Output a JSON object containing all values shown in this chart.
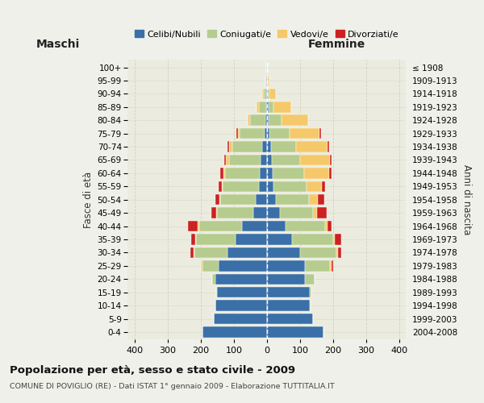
{
  "age_groups": [
    "0-4",
    "5-9",
    "10-14",
    "15-19",
    "20-24",
    "25-29",
    "30-34",
    "35-39",
    "40-44",
    "45-49",
    "50-54",
    "55-59",
    "60-64",
    "65-69",
    "70-74",
    "75-79",
    "80-84",
    "85-89",
    "90-94",
    "95-99",
    "100+"
  ],
  "birth_years": [
    "2004-2008",
    "1999-2003",
    "1994-1998",
    "1989-1993",
    "1984-1988",
    "1979-1983",
    "1974-1978",
    "1969-1973",
    "1964-1968",
    "1959-1963",
    "1954-1958",
    "1949-1953",
    "1944-1948",
    "1939-1943",
    "1934-1938",
    "1929-1933",
    "1924-1928",
    "1919-1923",
    "1914-1918",
    "1909-1913",
    "≤ 1908"
  ],
  "maschi": {
    "celibi": [
      195,
      160,
      155,
      150,
      155,
      145,
      120,
      95,
      75,
      40,
      35,
      24,
      22,
      20,
      15,
      8,
      5,
      3,
      2,
      2,
      1
    ],
    "coniugati": [
      0,
      0,
      1,
      2,
      10,
      50,
      100,
      120,
      130,
      110,
      105,
      110,
      105,
      95,
      90,
      75,
      45,
      20,
      8,
      3,
      1
    ],
    "vedovi": [
      0,
      0,
      0,
      0,
      0,
      5,
      2,
      2,
      3,
      3,
      3,
      3,
      5,
      10,
      8,
      5,
      8,
      8,
      5,
      0,
      0
    ],
    "divorziati": [
      0,
      0,
      0,
      0,
      0,
      0,
      8,
      12,
      30,
      15,
      12,
      8,
      8,
      5,
      5,
      5,
      0,
      0,
      0,
      0,
      0
    ]
  },
  "femmine": {
    "nubili": [
      170,
      140,
      130,
      130,
      115,
      115,
      100,
      75,
      55,
      38,
      28,
      20,
      18,
      15,
      12,
      8,
      5,
      4,
      2,
      1,
      1
    ],
    "coniugate": [
      0,
      0,
      2,
      5,
      30,
      75,
      110,
      125,
      120,
      100,
      100,
      100,
      95,
      85,
      75,
      60,
      40,
      15,
      5,
      2,
      1
    ],
    "vedove": [
      0,
      0,
      0,
      0,
      0,
      5,
      5,
      5,
      8,
      12,
      25,
      45,
      75,
      90,
      95,
      90,
      80,
      55,
      20,
      5,
      0
    ],
    "divorziate": [
      0,
      0,
      0,
      0,
      0,
      5,
      8,
      20,
      12,
      30,
      20,
      10,
      8,
      5,
      5,
      5,
      0,
      0,
      0,
      0,
      0
    ]
  },
  "colors": {
    "celibi": "#3a6fa8",
    "coniugati": "#b5cc8e",
    "vedovi": "#f5c96a",
    "divorziati": "#cc2222"
  },
  "xlim": 420,
  "title": "Popolazione per età, sesso e stato civile - 2009",
  "subtitle": "COMUNE DI POVIGLIO (RE) - Dati ISTAT 1° gennaio 2009 - Elaborazione TUTTITALIA.IT",
  "xlabel_left": "Maschi",
  "xlabel_right": "Femmine",
  "ylabel_left": "Fasce di età",
  "ylabel_right": "Anni di nascita",
  "bg_color": "#f0f0eb",
  "plot_bg": "#ebebdf"
}
